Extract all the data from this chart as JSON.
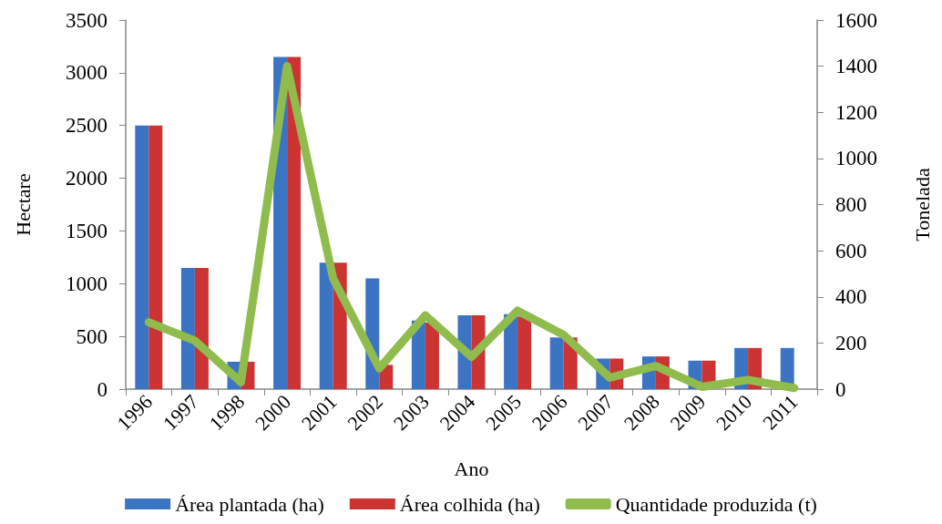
{
  "chart_data": {
    "type": "bar",
    "categories": [
      "1996",
      "1997",
      "1998",
      "2000",
      "2001",
      "2002",
      "2003",
      "2004",
      "2005",
      "2006",
      "2007",
      "2008",
      "2009",
      "2010",
      "2011"
    ],
    "xlabel": "Ano",
    "ylabel": "Hectare",
    "y2label": "Tonelada",
    "series": [
      {
        "name": "Área plantada (ha)",
        "color": "#3c74c4",
        "values": [
          2500,
          1150,
          260,
          3150,
          1200,
          1050,
          650,
          700,
          710,
          490,
          290,
          310,
          270,
          390,
          390
        ]
      },
      {
        "name": "Área colhida (ha)",
        "color": "#cc3333",
        "values": [
          2500,
          1150,
          260,
          3150,
          1200,
          230,
          630,
          700,
          690,
          490,
          290,
          310,
          270,
          390,
          0
        ]
      },
      {
        "name": "Quantidade produzida (t)",
        "type": "line",
        "axis": "y2",
        "color": "#8fbc4d",
        "values": [
          290,
          210,
          30,
          1400,
          480,
          90,
          320,
          140,
          340,
          235,
          50,
          100,
          10,
          40,
          5
        ]
      }
    ],
    "ylim": [
      0,
      3500
    ],
    "yticks": [
      0,
      500,
      1000,
      1500,
      2000,
      2500,
      3000,
      3500
    ],
    "y2lim": [
      0,
      1600
    ],
    "y2ticks": [
      0,
      200,
      400,
      600,
      800,
      1000,
      1200,
      1400,
      1600
    ],
    "grid": false,
    "legend": "bottom",
    "marker": "none"
  }
}
